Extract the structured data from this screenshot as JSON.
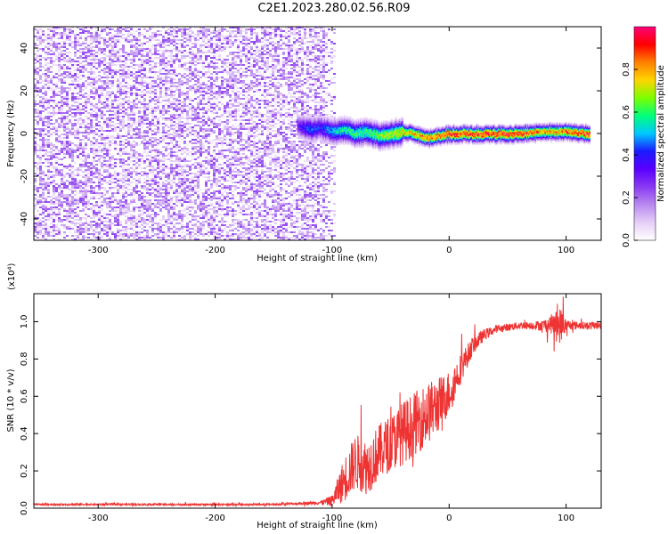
{
  "title": "C2E1.2023.280.02.56.R09",
  "colors": {
    "snr_line": "#ee3333",
    "spectral_colormap": [
      "#ffffff",
      "#e6cff7",
      "#b98af0",
      "#8a3af2",
      "#5a00ff",
      "#1b1bff",
      "#00c8ff",
      "#00ff7a",
      "#7cff00",
      "#ffd400",
      "#ff8000",
      "#ff0000",
      "#ff007a"
    ]
  },
  "chart_data": [
    {
      "type": "heatmap",
      "title": "C2E1.2023.280.02.56.R09",
      "xlabel": "Height of straight line (km)",
      "ylabel": "Frequency (Hz)",
      "xlim": [
        -355,
        130
      ],
      "ylim": [
        -50,
        50
      ],
      "xticks": [
        -300,
        -200,
        -100,
        0,
        100
      ],
      "xtick_labels": [
        "-300",
        "-200",
        "-100",
        "0",
        "100"
      ],
      "yticks": [
        -40,
        -20,
        0,
        20,
        40
      ],
      "ytick_labels": [
        "-40",
        "-20",
        "0",
        "20",
        "40"
      ],
      "colorbar": {
        "label": "Normalized spectral amplitude",
        "range": [
          0,
          1
        ],
        "ticks": [
          0.0,
          0.2,
          0.4,
          0.6,
          0.8
        ],
        "tick_labels": [
          "0.0",
          "0.2",
          "0.4",
          "0.6",
          "0.8"
        ]
      },
      "noise_region": {
        "x_range": [
          -355,
          -97
        ],
        "freq_range": [
          -50,
          50
        ],
        "amplitude": 0.12
      },
      "signal_ridge": {
        "x": [
          -130,
          -120,
          -110,
          -100,
          -90,
          -80,
          -70,
          -60,
          -50,
          -40,
          -30,
          -20,
          -10,
          0,
          20,
          40,
          60,
          80,
          100,
          120
        ],
        "freq": [
          4,
          2,
          3,
          1,
          2,
          0,
          1,
          -1,
          0,
          1,
          0,
          -2,
          -1,
          0,
          0,
          0,
          0,
          1,
          1,
          0
        ],
        "peak_amplitude": [
          0.3,
          0.45,
          0.4,
          0.5,
          0.55,
          0.6,
          0.6,
          0.65,
          0.7,
          0.75,
          0.8,
          0.85,
          0.85,
          0.9,
          0.9,
          0.92,
          0.92,
          0.8,
          0.85,
          0.9
        ]
      }
    },
    {
      "type": "line",
      "xlabel": "Height of straight line (km)",
      "ylabel": "SNR (10 * v/v)",
      "y_multiplier": "(x10⁴)",
      "xlim": [
        -355,
        130
      ],
      "ylim": [
        0,
        1.15
      ],
      "xticks": [
        -300,
        -200,
        -100,
        0,
        100
      ],
      "xtick_labels": [
        "-300",
        "-200",
        "-100",
        "0",
        "100"
      ],
      "yticks": [
        0.0,
        0.2,
        0.4,
        0.6,
        0.8,
        1.0
      ],
      "ytick_labels": [
        "0.0",
        "0.2",
        "0.4",
        "0.6",
        "0.8",
        "1.0"
      ],
      "series": [
        {
          "x": [
            -355,
            -300,
            -250,
            -200,
            -150,
            -110,
            -100,
            -90,
            -80,
            -70,
            -60,
            -50,
            -40,
            -30,
            -20,
            -10,
            0,
            10,
            20,
            30,
            40,
            50,
            60,
            70,
            80,
            90,
            95,
            100,
            110,
            120,
            130
          ],
          "y": [
            0.02,
            0.02,
            0.02,
            0.02,
            0.02,
            0.03,
            0.04,
            0.15,
            0.25,
            0.22,
            0.3,
            0.35,
            0.4,
            0.45,
            0.5,
            0.55,
            0.62,
            0.75,
            0.87,
            0.93,
            0.96,
            0.97,
            0.98,
            0.98,
            0.98,
            0.99,
            0.98,
            0.98,
            0.98,
            0.98,
            0.98
          ],
          "fluctuation": [
            0.005,
            0.005,
            0.005,
            0.005,
            0.005,
            0.01,
            0.03,
            0.12,
            0.15,
            0.15,
            0.15,
            0.15,
            0.17,
            0.17,
            0.17,
            0.15,
            0.12,
            0.08,
            0.05,
            0.03,
            0.02,
            0.02,
            0.02,
            0.02,
            0.03,
            0.06,
            0.1,
            0.03,
            0.02,
            0.02,
            0.02
          ]
        }
      ]
    }
  ]
}
